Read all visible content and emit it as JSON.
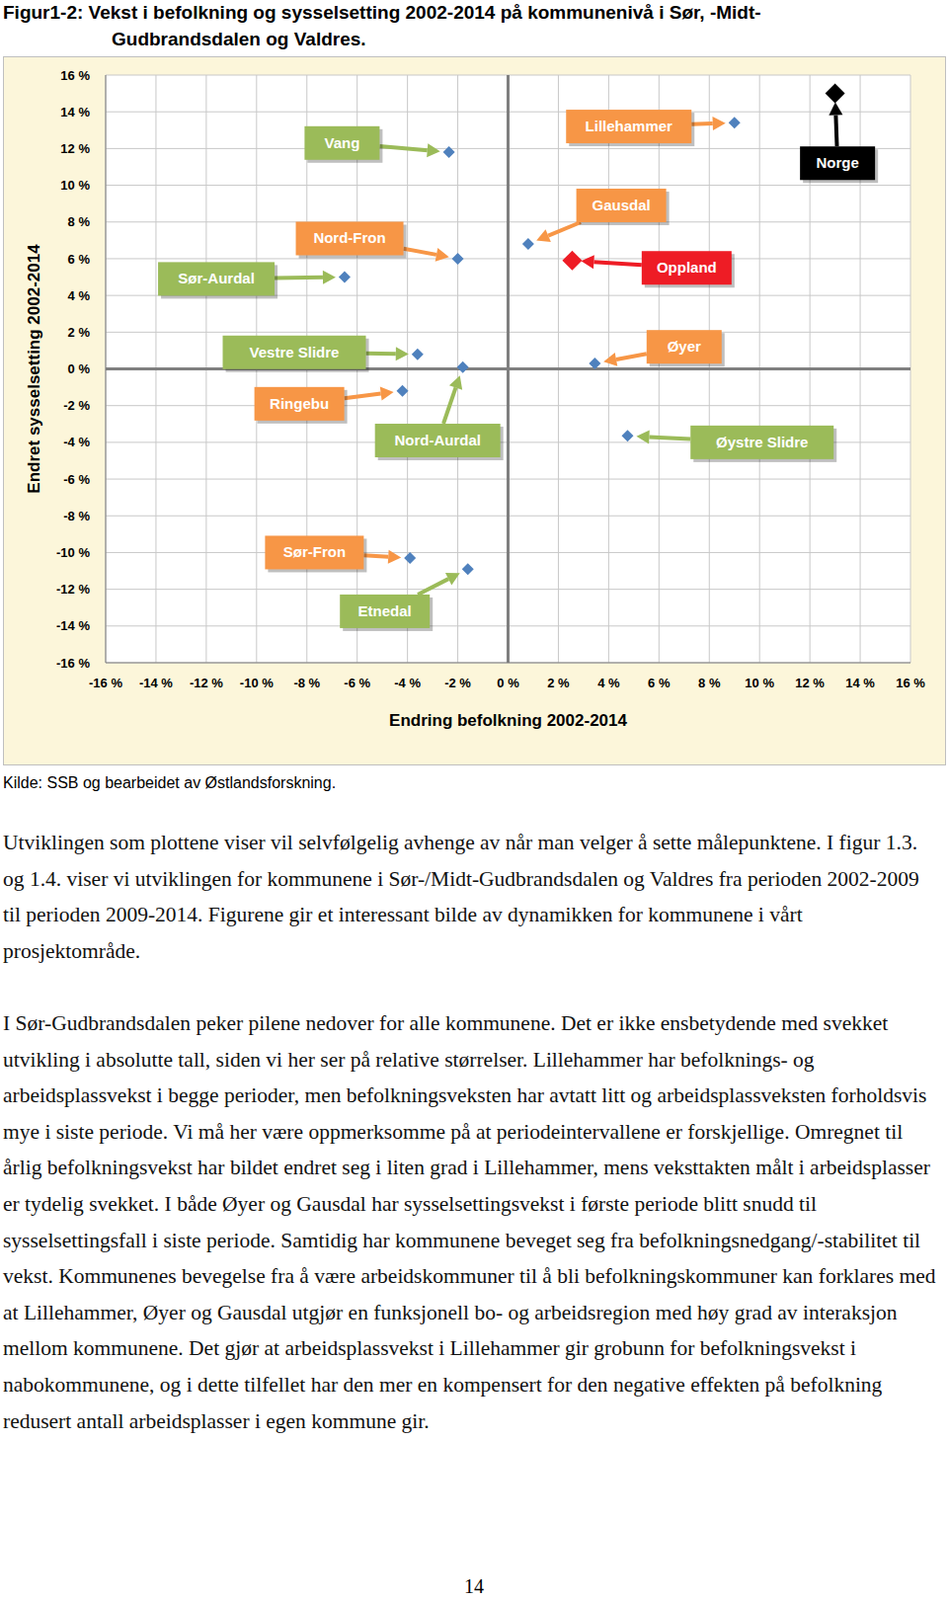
{
  "title": [
    "Figur1-2: Vekst i befolkning og sysselsetting 2002-2014 på kommunenivå i Sør, -Midt-",
    "Gudbrandsdalen og Valdres."
  ],
  "chart_data": {
    "type": "scatter",
    "xlabel": "Endring befolkning 2002-2014",
    "ylabel": "Endret sysselsetting 2002-2014",
    "xlim": [
      -16,
      16
    ],
    "ylim": [
      -16,
      16
    ],
    "xticks": [
      {
        "value": -16,
        "label": "-16 %"
      },
      {
        "value": -14,
        "label": "-14 %"
      },
      {
        "value": -12,
        "label": "-12 %"
      },
      {
        "value": -10,
        "label": "-10 %"
      },
      {
        "value": -8,
        "label": "-8 %"
      },
      {
        "value": -6,
        "label": "-6 %"
      },
      {
        "value": -4,
        "label": "-4 %"
      },
      {
        "value": -2,
        "label": "-2 %"
      },
      {
        "value": 0,
        "label": "0 %"
      },
      {
        "value": 2,
        "label": "2 %"
      },
      {
        "value": 4,
        "label": "4 %"
      },
      {
        "value": 6,
        "label": "6 %"
      },
      {
        "value": 8,
        "label": "8 %"
      },
      {
        "value": 10,
        "label": "10 %"
      },
      {
        "value": 12,
        "label": "12 %"
      },
      {
        "value": 14,
        "label": "14 %"
      },
      {
        "value": 16,
        "label": "16 %"
      }
    ],
    "yticks": [
      {
        "value": -16,
        "label": "-16 %"
      },
      {
        "value": -14,
        "label": "-14 %"
      },
      {
        "value": -12,
        "label": "-12 %"
      },
      {
        "value": -10,
        "label": "-10 %"
      },
      {
        "value": -8,
        "label": "-8 %"
      },
      {
        "value": -6,
        "label": "-6 %"
      },
      {
        "value": -4,
        "label": "-4 %"
      },
      {
        "value": -2,
        "label": "-2 %"
      },
      {
        "value": 0,
        "label": "0 %"
      },
      {
        "value": 2,
        "label": "2 %"
      },
      {
        "value": 4,
        "label": "4 %"
      },
      {
        "value": 6,
        "label": "6 %"
      },
      {
        "value": 8,
        "label": "8 %"
      },
      {
        "value": 10,
        "label": "10 %"
      },
      {
        "value": 12,
        "label": "12 %"
      },
      {
        "value": 14,
        "label": "14 %"
      },
      {
        "value": 16,
        "label": "16 %"
      }
    ],
    "grid": true,
    "series": [
      {
        "name": "Vang",
        "color": "#9bbb59",
        "marker": "diamond",
        "colors": [
          "#4f81bd"
        ],
        "x": [
          -2.35
        ],
        "y": [
          11.8
        ]
      },
      {
        "name": "Lillehammer",
        "color": "#f79646",
        "marker": "diamond",
        "colors": [
          "#4f81bd"
        ],
        "x": [
          9.0
        ],
        "y": [
          13.4
        ]
      },
      {
        "name": "Norge",
        "color": "#000000",
        "marker": "big_diamond",
        "colors": [
          "#000000"
        ],
        "x": [
          13.0
        ],
        "y": [
          15.0
        ]
      },
      {
        "name": "Gausdal",
        "color": "#f79646",
        "marker": "diamond",
        "colors": [
          "#4f81bd"
        ],
        "x": [
          0.8
        ],
        "y": [
          6.8
        ]
      },
      {
        "name": "Oppland",
        "color": "#ee1c25",
        "marker": "big_diamond",
        "colors": [
          "#ee1c25"
        ],
        "x": [
          2.55
        ],
        "y": [
          5.9
        ]
      },
      {
        "name": "Nord-Fron",
        "color": "#f79646",
        "marker": "diamond",
        "colors": [
          "#4f81bd"
        ],
        "x": [
          -2.0
        ],
        "y": [
          6.0
        ]
      },
      {
        "name": "Sør-Aurdal",
        "color": "#9bbb59",
        "marker": "diamond",
        "colors": [
          "#4f81bd"
        ],
        "x": [
          -6.5
        ],
        "y": [
          5.0
        ]
      },
      {
        "name": "Vestre Slidre",
        "color": "#9bbb59",
        "marker": "diamond",
        "colors": [
          "#4f81bd"
        ],
        "x": [
          -3.6
        ],
        "y": [
          0.8
        ]
      },
      {
        "name": "Nord-Aurdal",
        "color": "#9bbb59",
        "marker": "diamond",
        "colors": [
          "#4f81bd"
        ],
        "x": [
          -1.8
        ],
        "y": [
          0.1
        ]
      },
      {
        "name": "Øyer",
        "color": "#f79646",
        "marker": "diamond",
        "colors": [
          "#4f81bd"
        ],
        "x": [
          3.45
        ],
        "y": [
          0.3
        ]
      },
      {
        "name": "Ringebu",
        "color": "#f79646",
        "marker": "diamond",
        "colors": [
          "#4f81bd"
        ],
        "x": [
          -4.2
        ],
        "y": [
          -1.2
        ]
      },
      {
        "name": "Øystre Slidre",
        "color": "#9bbb59",
        "marker": "diamond",
        "colors": [
          "#4f81bd"
        ],
        "x": [
          4.75
        ],
        "y": [
          -3.65
        ]
      },
      {
        "name": "Sør-Fron",
        "color": "#f79646",
        "marker": "diamond",
        "colors": [
          "#4f81bd"
        ],
        "x": [
          -3.9
        ],
        "y": [
          -10.3
        ]
      },
      {
        "name": "Etnedal",
        "color": "#9bbb59",
        "marker": "diamond",
        "colors": [
          "#4f81bd"
        ],
        "x": [
          -1.6
        ],
        "y": [
          -10.9
        ]
      }
    ]
  },
  "source": "Kilde: SSB og bearbeidet av Østlandsforskning.",
  "paragraphs": [
    "Utviklingen som plottene viser vil selvfølgelig avhenge av når man velger å sette målepunktene. I figur 1.3. og 1.4. viser vi utviklingen for kommunene i Sør-/Midt-Gudbrandsdalen og Valdres fra perioden 2002-2009 til perioden 2009-2014. Figurene gir et interessant bilde av dynamikken for kommunene i vårt prosjektområde.",
    "I Sør-Gudbrandsdalen peker pilene nedover for alle kommunene. Det er ikke ensbetydende med svekket utvikling i absolutte tall, siden vi her ser på relative størrelser. Lillehammer har befolknings- og arbeidsplassvekst i begge perioder, men befolkningsveksten har avtatt litt og arbeidsplassveksten forholdsvis mye i siste periode. Vi må her være oppmerksomme på at periodeintervallene er forskjellige. Omregnet til årlig befolkningsvekst har bildet endret seg i liten grad i Lillehammer, mens veksttakten målt i arbeidsplasser er tydelig svekket. I både Øyer og Gausdal har sysselsettingsvekst i første periode blitt snudd til sysselsettingsfall i siste periode. Samtidig har kommunene beveget seg fra befolkningsnedgang/-stabilitet til vekst. Kommunenes bevegelse fra å være arbeidskommuner til å bli befolkningskommuner kan forklares med at Lillehammer, Øyer og Gausdal utgjør en funksjonell bo- og arbeidsregion med høy grad av interaksjon mellom kommunene. Det gjør at arbeidsplassvekst i Lillehammer gir grobunn for befolkningsvekst i nabokommunene, og i dette tilfellet har den mer en kompensert for den negative effekten på befolkning redusert antall arbeidsplasser i egen kommune gir."
  ],
  "page_number": "14"
}
